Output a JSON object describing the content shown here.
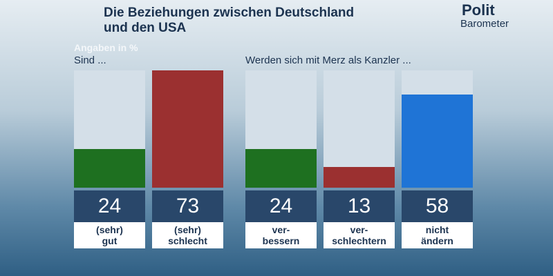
{
  "header": {
    "title": "Die Beziehungen zwischen Deutschland\nund den USA",
    "subtitle": "Angaben in %",
    "logo_top": "Polit",
    "logo_bottom": "Barometer"
  },
  "chart_data": [
    {
      "type": "bar",
      "title": "Sind ...",
      "categories": [
        "(sehr)\ngut",
        "(sehr)\nschlecht"
      ],
      "values": [
        24,
        73
      ],
      "colors": [
        "#1e7020",
        "#9b3030"
      ],
      "ylim": [
        0,
        73
      ]
    },
    {
      "type": "bar",
      "title": "Werden sich mit Merz als Kanzler ...",
      "categories": [
        "ver-\nbessern",
        "ver-\nschlechtern",
        "nicht\nändern"
      ],
      "values": [
        24,
        13,
        58
      ],
      "colors": [
        "#1e7020",
        "#9b3030",
        "#1f74d6"
      ],
      "ylim": [
        0,
        73
      ]
    }
  ]
}
